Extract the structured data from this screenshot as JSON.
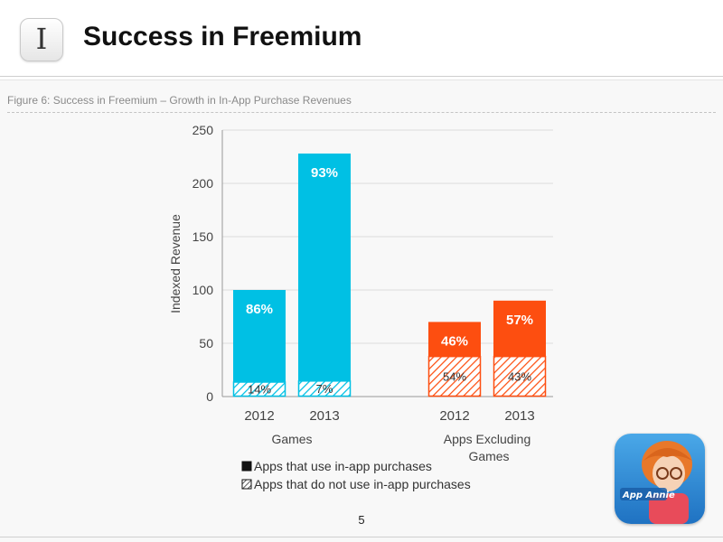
{
  "slide": {
    "title": "Success in Freemium",
    "icon_glyph": "I",
    "page_number": "5"
  },
  "figure": {
    "caption": "Figure 6: Success in Freemium – Growth in In-App Purchase Revenues"
  },
  "logo": {
    "icon": "app-annie-logo-icon",
    "text": "App Annie"
  },
  "colors": {
    "games_fill": "#00c0e4",
    "apps_fill": "#fd4e10",
    "grid": "#dcdcdc",
    "axis_text": "#444444",
    "hatch_text": "#333333"
  },
  "chart_data": {
    "type": "bar",
    "stacked": true,
    "ylabel": "Indexed Revenue",
    "ylim": [
      0,
      250
    ],
    "yticks": [
      0,
      50,
      100,
      150,
      200,
      250
    ],
    "grid": true,
    "legend_position": "bottom-left",
    "groups": [
      {
        "name": "Games",
        "color_key": "games_fill",
        "bars": [
          {
            "year": "2012",
            "total": 100,
            "hatched_value": 14,
            "solid_label": "86%",
            "hatched_label": "14%"
          },
          {
            "year": "2013",
            "total": 228,
            "hatched_value": 15,
            "solid_label": "93%",
            "hatched_label": "7%"
          }
        ]
      },
      {
        "name": "Apps Excluding Games",
        "color_key": "apps_fill",
        "bars": [
          {
            "year": "2012",
            "total": 70,
            "hatched_value": 38,
            "solid_label": "46%",
            "hatched_label": "54%"
          },
          {
            "year": "2013",
            "total": 90,
            "hatched_value": 38,
            "solid_label": "57%",
            "hatched_label": "43%"
          }
        ]
      }
    ],
    "legend": [
      {
        "label": "Apps that use in-app purchases",
        "style": "solid"
      },
      {
        "label": "Apps that do not use in-app purchases",
        "style": "hatched"
      }
    ]
  }
}
